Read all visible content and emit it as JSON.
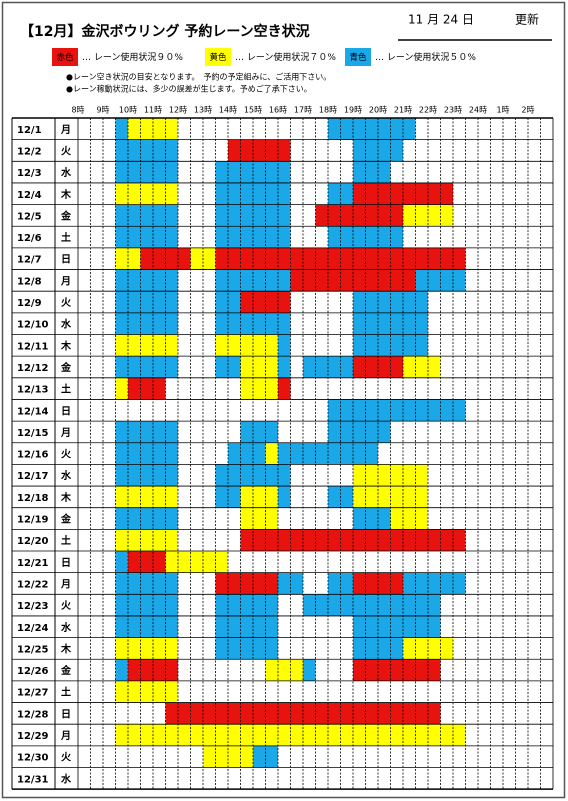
{
  "header": {
    "title": "【12月】金沢ボウリング  予約レーン空き状況",
    "updated_date": "11  月  24  日",
    "updated_label": "更新"
  },
  "legend": [
    {
      "label": "赤色",
      "text": "… レーン使用状況９０%",
      "color": "#e8120f"
    },
    {
      "label": "黄色",
      "text": "… レーン使用状況７０%",
      "color": "#ffff00"
    },
    {
      "label": "青色",
      "text": "… レーン使用状況５０%",
      "color": "#1ba8e8"
    }
  ],
  "notes": [
    "●レーン空き状況の目安となります。　予約の予定組みに、ご活用下さい。",
    "●レーン稼動状況には、多少の誤差が生じます。予めご了承下さい。"
  ],
  "schedule": {
    "hours": [
      "8時",
      "9時",
      "10時",
      "11時",
      "12時",
      "13時",
      "14時",
      "15時",
      "16時",
      "17時",
      "18時",
      "19時",
      "20時",
      "21時",
      "22時",
      "23時",
      "24時",
      "1時",
      "2時"
    ],
    "rows": [
      {
        "date": "12/1",
        "day": "月",
        "bookings": [
          [
            3,
            4,
            "#1ba8e8"
          ],
          [
            4,
            8,
            "#ffff00"
          ],
          [
            20,
            27,
            "#1ba8e8"
          ]
        ]
      },
      {
        "date": "12/2",
        "day": "火",
        "bookings": [
          [
            3,
            8,
            "#1ba8e8"
          ],
          [
            12,
            17,
            "#e8120f"
          ],
          [
            22,
            26,
            "#1ba8e8"
          ]
        ]
      },
      {
        "date": "12/3",
        "day": "水",
        "bookings": [
          [
            3,
            8,
            "#1ba8e8"
          ],
          [
            11,
            17,
            "#1ba8e8"
          ],
          [
            22,
            25,
            "#1ba8e8"
          ]
        ]
      },
      {
        "date": "12/4",
        "day": "木",
        "bookings": [
          [
            3,
            8,
            "#ffff00"
          ],
          [
            11,
            17,
            "#1ba8e8"
          ],
          [
            20,
            22,
            "#1ba8e8"
          ],
          [
            22,
            30,
            "#e8120f"
          ]
        ]
      },
      {
        "date": "12/5",
        "day": "金",
        "bookings": [
          [
            3,
            8,
            "#1ba8e8"
          ],
          [
            11,
            17,
            "#1ba8e8"
          ],
          [
            19,
            26,
            "#e8120f"
          ],
          [
            26,
            30,
            "#ffff00"
          ]
        ]
      },
      {
        "date": "12/6",
        "day": "土",
        "color": "#1a5fc8",
        "bookings": [
          [
            3,
            8,
            "#1ba8e8"
          ],
          [
            11,
            17,
            "#1ba8e8"
          ],
          [
            20,
            26,
            "#1ba8e8"
          ]
        ]
      },
      {
        "date": "12/7",
        "day": "日",
        "color": "#e8120f",
        "bookings": [
          [
            3,
            5,
            "#ffff00"
          ],
          [
            5,
            9,
            "#e8120f"
          ],
          [
            9,
            11,
            "#ffff00"
          ],
          [
            11,
            31,
            "#e8120f"
          ]
        ]
      },
      {
        "date": "12/8",
        "day": "月",
        "bookings": [
          [
            3,
            8,
            "#1ba8e8"
          ],
          [
            11,
            17,
            "#1ba8e8"
          ],
          [
            17,
            27,
            "#e8120f"
          ],
          [
            27,
            31,
            "#1ba8e8"
          ]
        ]
      },
      {
        "date": "12/9",
        "day": "火",
        "bookings": [
          [
            3,
            8,
            "#1ba8e8"
          ],
          [
            11,
            13,
            "#1ba8e8"
          ],
          [
            13,
            17,
            "#e8120f"
          ],
          [
            22,
            28,
            "#1ba8e8"
          ]
        ]
      },
      {
        "date": "12/10",
        "day": "水",
        "bookings": [
          [
            3,
            8,
            "#1ba8e8"
          ],
          [
            11,
            17,
            "#1ba8e8"
          ],
          [
            22,
            28,
            "#1ba8e8"
          ]
        ]
      },
      {
        "date": "12/11",
        "day": "木",
        "bookings": [
          [
            3,
            8,
            "#ffff00"
          ],
          [
            11,
            16,
            "#ffff00"
          ],
          [
            16,
            17,
            "#1ba8e8"
          ],
          [
            22,
            28,
            "#1ba8e8"
          ]
        ]
      },
      {
        "date": "12/12",
        "day": "金",
        "bookings": [
          [
            3,
            8,
            "#1ba8e8"
          ],
          [
            11,
            13,
            "#1ba8e8"
          ],
          [
            13,
            16,
            "#ffff00"
          ],
          [
            16,
            17,
            "#1ba8e8"
          ],
          [
            18,
            22,
            "#1ba8e8"
          ],
          [
            22,
            26,
            "#e8120f"
          ],
          [
            26,
            29,
            "#ffff00"
          ]
        ]
      },
      {
        "date": "12/13",
        "day": "土",
        "color": "#1a5fc8",
        "bookings": [
          [
            3,
            4,
            "#ffff00"
          ],
          [
            4,
            7,
            "#e8120f"
          ],
          [
            13,
            16,
            "#ffff00"
          ],
          [
            16,
            17,
            "#e8120f"
          ]
        ]
      },
      {
        "date": "12/14",
        "day": "日",
        "color": "#e8120f",
        "bookings": [
          [
            20,
            31,
            "#1ba8e8"
          ]
        ]
      },
      {
        "date": "12/15",
        "day": "月",
        "bookings": [
          [
            3,
            8,
            "#1ba8e8"
          ],
          [
            13,
            16,
            "#1ba8e8"
          ],
          [
            20,
            25,
            "#1ba8e8"
          ]
        ]
      },
      {
        "date": "12/16",
        "day": "火",
        "bookings": [
          [
            3,
            8,
            "#1ba8e8"
          ],
          [
            12,
            15,
            "#1ba8e8"
          ],
          [
            15,
            16,
            "#ffff00"
          ],
          [
            16,
            24,
            "#1ba8e8"
          ]
        ]
      },
      {
        "date": "12/17",
        "day": "水",
        "bookings": [
          [
            3,
            8,
            "#1ba8e8"
          ],
          [
            11,
            17,
            "#1ba8e8"
          ],
          [
            22,
            28,
            "#ffff00"
          ]
        ]
      },
      {
        "date": "12/18",
        "day": "木",
        "bookings": [
          [
            3,
            8,
            "#ffff00"
          ],
          [
            11,
            13,
            "#1ba8e8"
          ],
          [
            13,
            16,
            "#ffff00"
          ],
          [
            16,
            17,
            "#1ba8e8"
          ],
          [
            20,
            22,
            "#1ba8e8"
          ],
          [
            22,
            28,
            "#ffff00"
          ]
        ]
      },
      {
        "date": "12/19",
        "day": "金",
        "bookings": [
          [
            3,
            8,
            "#1ba8e8"
          ],
          [
            13,
            16,
            "#ffff00"
          ],
          [
            22,
            25,
            "#1ba8e8"
          ],
          [
            25,
            28,
            "#ffff00"
          ]
        ]
      },
      {
        "date": "12/20",
        "day": "土",
        "color": "#1a5fc8",
        "bookings": [
          [
            3,
            8,
            "#ffff00"
          ],
          [
            13,
            31,
            "#e8120f"
          ]
        ]
      },
      {
        "date": "12/21",
        "day": "日",
        "color": "#e8120f",
        "bookings": [
          [
            3,
            4,
            "#1ba8e8"
          ],
          [
            4,
            7,
            "#e8120f"
          ],
          [
            7,
            12,
            "#ffff00"
          ]
        ]
      },
      {
        "date": "12/22",
        "day": "月",
        "bookings": [
          [
            3,
            8,
            "#1ba8e8"
          ],
          [
            11,
            16,
            "#e8120f"
          ],
          [
            16,
            18,
            "#1ba8e8"
          ],
          [
            20,
            22,
            "#1ba8e8"
          ],
          [
            22,
            26,
            "#e8120f"
          ],
          [
            26,
            31,
            "#1ba8e8"
          ]
        ]
      },
      {
        "date": "12/23",
        "day": "火",
        "bookings": [
          [
            3,
            8,
            "#1ba8e8"
          ],
          [
            11,
            16,
            "#1ba8e8"
          ],
          [
            18,
            29,
            "#1ba8e8"
          ]
        ]
      },
      {
        "date": "12/24",
        "day": "水",
        "bookings": [
          [
            3,
            8,
            "#1ba8e8"
          ],
          [
            11,
            16,
            "#1ba8e8"
          ],
          [
            22,
            29,
            "#1ba8e8"
          ]
        ]
      },
      {
        "date": "12/25",
        "day": "木",
        "bookings": [
          [
            3,
            8,
            "#ffff00"
          ],
          [
            11,
            16,
            "#1ba8e8"
          ],
          [
            22,
            26,
            "#1ba8e8"
          ],
          [
            26,
            30,
            "#ffff00"
          ]
        ]
      },
      {
        "date": "12/26",
        "day": "金",
        "bookings": [
          [
            3,
            4,
            "#1ba8e8"
          ],
          [
            4,
            8,
            "#e8120f"
          ],
          [
            15,
            18,
            "#ffff00"
          ],
          [
            18,
            19,
            "#1ba8e8"
          ],
          [
            22,
            29,
            "#e8120f"
          ]
        ]
      },
      {
        "date": "12/27",
        "day": "土",
        "color": "#1a5fc8",
        "bookings": [
          [
            3,
            8,
            "#ffff00"
          ]
        ]
      },
      {
        "date": "12/28",
        "day": "日",
        "color": "#e8120f",
        "bookings": [
          [
            7,
            29,
            "#e8120f"
          ]
        ]
      },
      {
        "date": "12/29",
        "day": "月",
        "bookings": [
          [
            3,
            31,
            "#ffff00"
          ]
        ]
      },
      {
        "date": "12/30",
        "day": "火",
        "bookings": [
          [
            10,
            14,
            "#ffff00"
          ],
          [
            14,
            16,
            "#1ba8e8"
          ]
        ]
      },
      {
        "date": "12/31",
        "day": "水",
        "bookings": []
      }
    ]
  }
}
